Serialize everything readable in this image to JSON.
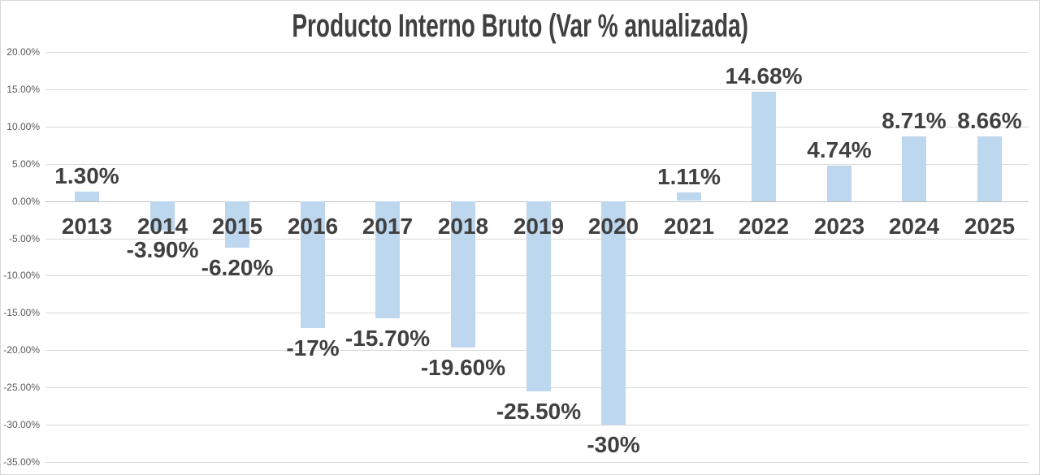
{
  "chart_data": {
    "type": "bar",
    "title": "Producto Interno Bruto (Var % anualizada)",
    "categories": [
      "2013",
      "2014",
      "2015",
      "2016",
      "2017",
      "2018",
      "2019",
      "2020",
      "2021",
      "2022",
      "2023",
      "2024",
      "2025"
    ],
    "values": [
      1.3,
      -3.9,
      -6.2,
      -17,
      -15.7,
      -19.6,
      -25.5,
      -30,
      1.11,
      14.68,
      4.74,
      8.71,
      8.66
    ],
    "labels": [
      "1.30%",
      "-3.90%",
      "-6.20%",
      "-17%",
      "-15.70%",
      "-19.60%",
      "-25.50%",
      "-30%",
      "1.11%",
      "14.68%",
      "4.74%",
      "8.71%",
      "8.66%"
    ],
    "xlabel": "",
    "ylabel": "",
    "ylim": [
      -35,
      20
    ],
    "ytick_step": 5,
    "ytick_labels": [
      "20.00%",
      "15.00%",
      "10.00%",
      "5.00%",
      "0.00%",
      "-5.00%",
      "-10.00%",
      "-15.00%",
      "-20.00%",
      "-25.00%",
      "-30.00%",
      "-35.00%"
    ],
    "grid": true,
    "legend_position": "none",
    "colors": {
      "bar_fill": "#bdd7ee",
      "label_text": "#404040",
      "title_text": "#404040",
      "axis_text": "#595959",
      "gridline": "#d9d9d9",
      "zero_line": "#bfbfbf",
      "background": "#ffffff",
      "border": "#d9d9d9"
    }
  }
}
